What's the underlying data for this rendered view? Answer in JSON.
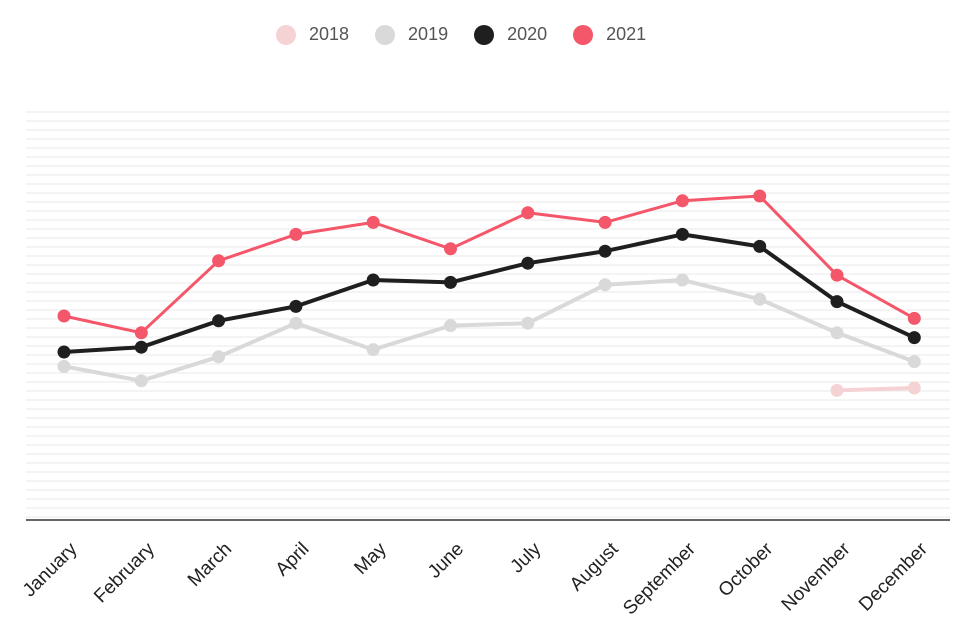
{
  "chart_data": {
    "type": "line",
    "categories": [
      "January",
      "February",
      "March",
      "April",
      "May",
      "June",
      "July",
      "August",
      "September",
      "October",
      "November",
      "December"
    ],
    "series": [
      {
        "name": "2018",
        "color": "#f5d3d5",
        "values": [
          null,
          null,
          null,
          null,
          null,
          null,
          null,
          null,
          null,
          null,
          34,
          35
        ]
      },
      {
        "name": "2019",
        "color": "#d9d9d9",
        "values": [
          44,
          38,
          48,
          62,
          51,
          61,
          62,
          78,
          80,
          72,
          58,
          46
        ]
      },
      {
        "name": "2020",
        "color": "#1f1f1f",
        "values": [
          50,
          52,
          63,
          69,
          80,
          79,
          87,
          92,
          99,
          94,
          71,
          56
        ]
      },
      {
        "name": "2021",
        "color": "#f4566a",
        "values": [
          65,
          58,
          88,
          99,
          104,
          93,
          108,
          104,
          113,
          115,
          82,
          64
        ]
      }
    ],
    "ylim": [
      -20,
      150
    ],
    "grid": true,
    "legend_position": "top-center",
    "title": "",
    "xlabel": "",
    "ylabel": ""
  }
}
